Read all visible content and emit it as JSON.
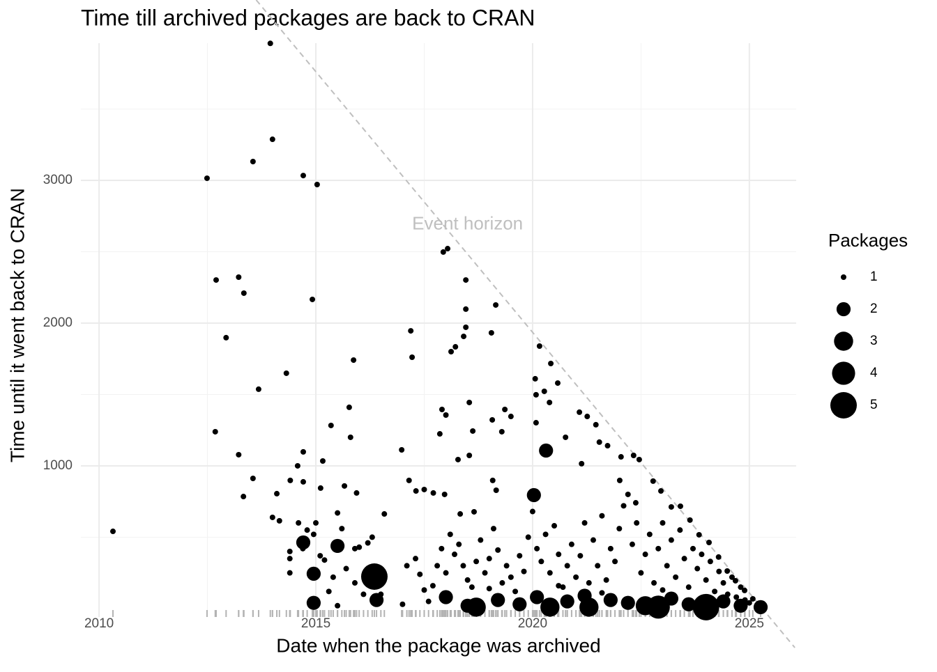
{
  "chart_data": {
    "type": "scatter",
    "title": "Time till archived packages are back to CRAN",
    "x_label": "Date when the package was archived",
    "y_label": "Time until it went back to CRAN",
    "xlim": [
      2009.58,
      2026.08
    ],
    "ylim": [
      -59,
      4020
    ],
    "xticks": [
      2010,
      2015,
      2020,
      2025
    ],
    "yticks": [
      1000,
      2000,
      3000
    ],
    "minor_xticks": [
      2012.5,
      2017.5,
      2022.5
    ],
    "minor_yticks": [
      500,
      1500,
      2500,
      3500
    ],
    "grid": true,
    "color": "#000000",
    "rug": true,
    "rug_color": "#b3b3b3",
    "reference_line": {
      "label": "Event horizon",
      "x": [
        2013.8,
        2025.3
      ],
      "y": [
        4200,
        0
      ],
      "color": "#bfbfbf",
      "label_x": 2018.5,
      "label_y": 2690
    },
    "legend": {
      "title": "Packages",
      "values": [
        1,
        2,
        3,
        4,
        5
      ],
      "position": "right"
    },
    "x": [
      2010.32,
      2013.95,
      2014.0,
      2012.49,
      2013.55,
      2014.71,
      2015.03,
      2012.7,
      2013.22,
      2013.34,
      2014.92,
      2012.93,
      2013.68,
      2014.32,
      2015.87,
      2012.68,
      2013.22,
      2013.55,
      2013.33,
      2014.1,
      2014.0,
      2014.16,
      2014.71,
      2014.58,
      2014.41,
      2014.71,
      2015.16,
      2015.77,
      2015.8,
      2015.35,
      2015.11,
      2015.66,
      2015.94,
      2016.58,
      2014.71,
      2015.5,
      2016.35,
      2014.95,
      2016.98,
      2017.19,
      2017.22,
      2017.94,
      2018.04,
      2018.46,
      2018.46,
      2018.46,
      2018.41,
      2018.22,
      2018.12,
      2019.15,
      2019.05,
      2017.91,
      2018.0,
      2018.54,
      2017.86,
      2018.62,
      2018.28,
      2018.54,
      2019.07,
      2019.36,
      2019.29,
      2019.5,
      2020.16,
      2020.42,
      2020.06,
      2020.58,
      2020.08,
      2020.27,
      2020.39,
      2020.08,
      2020.31,
      2020.03,
      2017.15,
      2017.31,
      2017.5,
      2017.71,
      2017.97,
      2018.33,
      2018.65,
      2019.08,
      2019.16,
      2021.08,
      2021.26,
      2021.46,
      2021.54,
      2021.73,
      2022.04,
      2022.33,
      2022.46,
      2020.76,
      2021.13,
      2022.01,
      2022.38,
      2022.78,
      2022.96,
      2023.2,
      2023.41,
      2023.63,
      2023.84,
      2024.07,
      2024.29,
      2024.49,
      2024.68,
      2024.89,
      2025.08,
      2025.26,
      2014.6,
      2014.8,
      2014.4,
      2014.4,
      2014.4,
      2014.7,
      2015.0,
      2014.95,
      2015.1,
      2015.2,
      2015.4,
      2015.5,
      2015.6,
      2015.9,
      2016.0,
      2016.2,
      2016.3,
      2015.7,
      2015.9,
      2016.5,
      2017.1,
      2017.3,
      2017.4,
      2017.5,
      2017.7,
      2017.8,
      2017.9,
      2018.0,
      2018.1,
      2018.2,
      2018.3,
      2018.4,
      2018.5,
      2018.6,
      2018.7,
      2018.8,
      2018.9,
      2019.0,
      2019.1,
      2019.2,
      2019.3,
      2019.4,
      2019.5,
      2019.6,
      2019.7,
      2019.8,
      2019.9,
      2020.0,
      2020.1,
      2020.2,
      2020.3,
      2020.4,
      2020.5,
      2020.6,
      2020.7,
      2020.8,
      2020.9,
      2021.0,
      2021.1,
      2021.2,
      2021.3,
      2021.4,
      2021.5,
      2021.6,
      2021.7,
      2021.8,
      2021.9,
      2022.0,
      2022.1,
      2022.2,
      2022.3,
      2022.4,
      2022.5,
      2022.6,
      2022.7,
      2022.8,
      2022.9,
      2023.0,
      2023.1,
      2023.2,
      2023.3,
      2023.4,
      2023.5,
      2023.6,
      2023.7,
      2023.8,
      2023.9,
      2024.0,
      2024.1,
      2024.2,
      2024.3,
      2024.4,
      2024.5,
      2024.6,
      2024.7,
      2024.8,
      2024.9,
      2025.0,
      2014.95,
      2015.5,
      2016.4,
      2017.0,
      2017.6,
      2018.0,
      2018.5,
      2018.7,
      2019.2,
      2019.7,
      2020.1,
      2020.4,
      2020.8,
      2021.2,
      2021.3,
      2021.8,
      2022.2,
      2022.6,
      2022.9,
      2023.2,
      2023.6,
      2024.0,
      2024.4,
      2024.8,
      2016.1,
      2015.3,
      2019.0,
      2020.6,
      2021.6,
      2023.0
    ],
    "values": [
      541,
      3960,
      3288,
      3015,
      3132,
      3034,
      2971,
      2302,
      2322,
      2210,
      2166,
      1898,
      1537,
      1649,
      1741,
      1239,
      1078,
      912,
      785,
      805,
      639,
      615,
      1098,
      1000,
      898,
      888,
      1034,
      1410,
      1200,
      1283,
      844,
      859,
      810,
      663,
      463,
      439,
      224,
      244,
      1112,
      1946,
      1761,
      2498,
      2522,
      2302,
      2098,
      1971,
      1907,
      1834,
      1800,
      2127,
      1932,
      1395,
      1356,
      1444,
      1224,
      1244,
      1044,
      1073,
      1322,
      1395,
      1239,
      1346,
      1839,
      1717,
      1610,
      1580,
      1498,
      1522,
      1444,
      1302,
      1107,
      795,
      898,
      824,
      834,
      810,
      800,
      663,
      678,
      898,
      829,
      1376,
      1346,
      1288,
      1166,
      1141,
      1063,
      1073,
      1044,
      1200,
      1015,
      898,
      741,
      893,
      824,
      712,
      717,
      620,
      517,
      463,
      361,
      263,
      195,
      127,
      68,
      10,
      600,
      550,
      400,
      350,
      250,
      420,
      600,
      520,
      370,
      340,
      220,
      670,
      560,
      420,
      430,
      460,
      500,
      280,
      180,
      100,
      300,
      350,
      240,
      130,
      160,
      300,
      420,
      250,
      520,
      380,
      450,
      300,
      200,
      150,
      330,
      480,
      250,
      350,
      560,
      410,
      180,
      300,
      220,
      120,
      370,
      260,
      500,
      680,
      420,
      330,
      520,
      250,
      580,
      380,
      150,
      300,
      450,
      220,
      370,
      600,
      180,
      480,
      300,
      650,
      200,
      420,
      330,
      560,
      720,
      800,
      450,
      600,
      250,
      380,
      520,
      180,
      420,
      600,
      300,
      480,
      220,
      550,
      350,
      150,
      420,
      280,
      380,
      200,
      330,
      120,
      260,
      180,
      100,
      220,
      80,
      150,
      60,
      40,
      40,
      20,
      60,
      30,
      50,
      80,
      20,
      10,
      60,
      30,
      80,
      10,
      50,
      90,
      10,
      60,
      40,
      20,
      10,
      70,
      30,
      10,
      50,
      20,
      100,
      120,
      140,
      160,
      110,
      130
    ],
    "sizes": [
      1,
      1,
      1,
      1,
      1,
      1,
      1,
      1,
      1,
      1,
      1,
      1,
      1,
      1,
      1,
      1,
      1,
      1,
      1,
      1,
      1,
      1,
      1,
      1,
      1,
      1,
      1,
      1,
      1,
      1,
      1,
      1,
      1,
      1,
      2,
      2,
      5,
      2,
      1,
      1,
      1,
      1,
      1,
      1,
      1,
      1,
      1,
      1,
      1,
      1,
      1,
      1,
      1,
      1,
      1,
      1,
      1,
      1,
      1,
      1,
      1,
      1,
      1,
      1,
      1,
      1,
      1,
      1,
      1,
      1,
      2,
      2,
      1,
      1,
      1,
      1,
      1,
      1,
      1,
      1,
      1,
      1,
      1,
      1,
      1,
      1,
      1,
      1,
      1,
      1,
      1,
      1,
      1,
      1,
      1,
      1,
      1,
      1,
      1,
      1,
      1,
      1,
      1,
      1,
      1,
      2,
      1,
      1,
      1,
      1,
      1,
      1,
      1,
      1,
      1,
      1,
      1,
      1,
      1,
      1,
      1,
      1,
      1,
      1,
      1,
      1,
      1,
      1,
      1,
      1,
      1,
      1,
      1,
      1,
      1,
      1,
      1,
      1,
      1,
      1,
      1,
      1,
      1,
      1,
      1,
      1,
      1,
      1,
      1,
      1,
      1,
      1,
      1,
      1,
      1,
      1,
      1,
      1,
      1,
      1,
      1,
      1,
      1,
      1,
      1,
      1,
      1,
      1,
      1,
      1,
      1,
      1,
      1,
      1,
      1,
      1,
      1,
      1,
      1,
      1,
      1,
      1,
      1,
      1,
      1,
      1,
      1,
      1,
      1,
      1,
      1,
      1,
      1,
      1,
      1,
      1,
      1,
      1,
      1,
      1,
      1,
      1,
      1,
      1,
      2,
      1,
      2,
      1,
      1,
      2,
      2,
      3,
      2,
      2,
      2,
      3,
      2,
      2,
      3,
      2,
      2,
      3,
      4,
      2,
      2,
      5,
      2,
      2,
      1,
      1,
      1,
      1,
      1,
      1
    ]
  }
}
